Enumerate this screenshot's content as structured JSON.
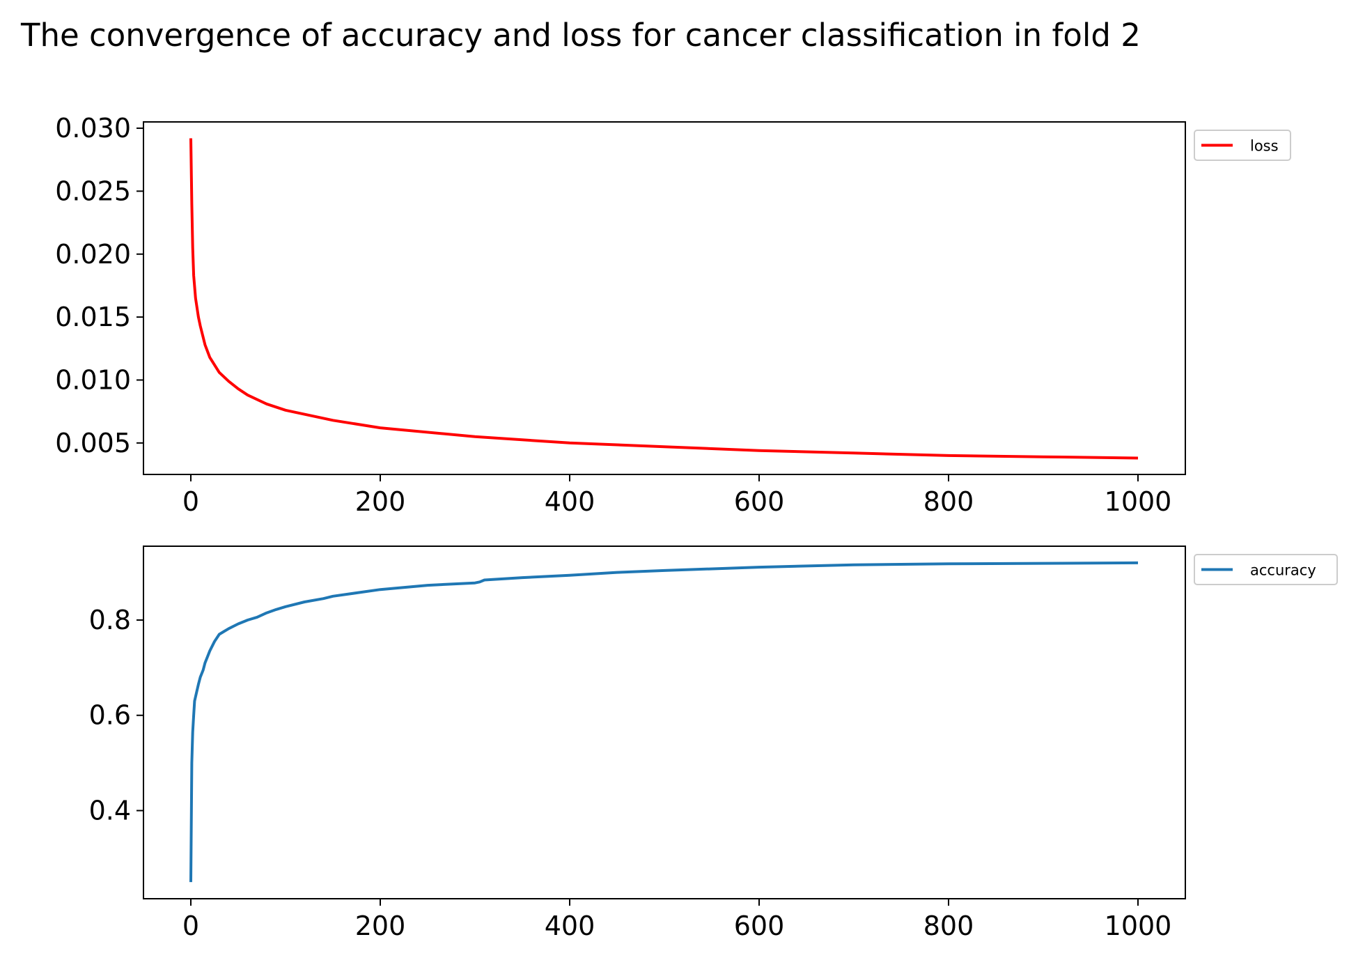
{
  "title": "The convergence of accuracy and loss for cancer classification in fold 2",
  "chart_data": [
    {
      "type": "line",
      "title": "",
      "xlabel": "",
      "ylabel": "",
      "xlim": [
        -50,
        1050
      ],
      "ylim": [
        0.0025,
        0.0305
      ],
      "xticks": [
        0,
        200,
        400,
        600,
        800,
        1000
      ],
      "xtick_labels": [
        "0",
        "200",
        "400",
        "600",
        "800",
        "1000"
      ],
      "yticks": [
        0.005,
        0.01,
        0.015,
        0.02,
        0.025,
        0.03
      ],
      "ytick_labels": [
        "0.005",
        "0.010",
        "0.015",
        "0.020",
        "0.025",
        "0.030"
      ],
      "grid": false,
      "legend_position": "outside-top-right",
      "series": [
        {
          "name": "loss",
          "color": "#ff0000",
          "x": [
            0,
            1,
            2,
            3,
            5,
            8,
            10,
            15,
            20,
            30,
            40,
            50,
            60,
            80,
            100,
            150,
            200,
            300,
            400,
            500,
            600,
            700,
            800,
            900,
            1000
          ],
          "y": [
            0.0292,
            0.024,
            0.0205,
            0.0183,
            0.0165,
            0.015,
            0.0143,
            0.0128,
            0.0118,
            0.0106,
            0.0099,
            0.0093,
            0.0088,
            0.0081,
            0.0076,
            0.0068,
            0.0062,
            0.0055,
            0.005,
            0.0047,
            0.0044,
            0.0042,
            0.004,
            0.0039,
            0.0038
          ]
        }
      ]
    },
    {
      "type": "line",
      "title": "",
      "xlabel": "",
      "ylabel": "",
      "xlim": [
        -50,
        1050
      ],
      "ylim": [
        0.215,
        0.955
      ],
      "xticks": [
        0,
        200,
        400,
        600,
        800,
        1000
      ],
      "xtick_labels": [
        "0",
        "200",
        "400",
        "600",
        "800",
        "1000"
      ],
      "yticks": [
        0.4,
        0.6,
        0.8
      ],
      "ytick_labels": [
        "0.4",
        "0.6",
        "0.8"
      ],
      "grid": false,
      "legend_position": "outside-top-right",
      "series": [
        {
          "name": "accuracy",
          "color": "#1f77b4",
          "x": [
            0,
            1,
            2,
            3,
            4,
            6,
            8,
            10,
            13,
            15,
            18,
            20,
            25,
            30,
            35,
            40,
            50,
            60,
            70,
            80,
            90,
            100,
            120,
            140,
            150,
            200,
            250,
            300,
            305,
            310,
            350,
            400,
            450,
            500,
            600,
            700,
            800,
            900,
            1000
          ],
          "y": [
            0.25,
            0.5,
            0.565,
            0.6,
            0.63,
            0.648,
            0.665,
            0.68,
            0.695,
            0.71,
            0.725,
            0.735,
            0.755,
            0.77,
            0.776,
            0.782,
            0.792,
            0.8,
            0.806,
            0.815,
            0.822,
            0.828,
            0.838,
            0.845,
            0.85,
            0.864,
            0.873,
            0.878,
            0.88,
            0.884,
            0.889,
            0.894,
            0.9,
            0.904,
            0.911,
            0.916,
            0.918,
            0.919,
            0.92
          ]
        }
      ]
    }
  ]
}
